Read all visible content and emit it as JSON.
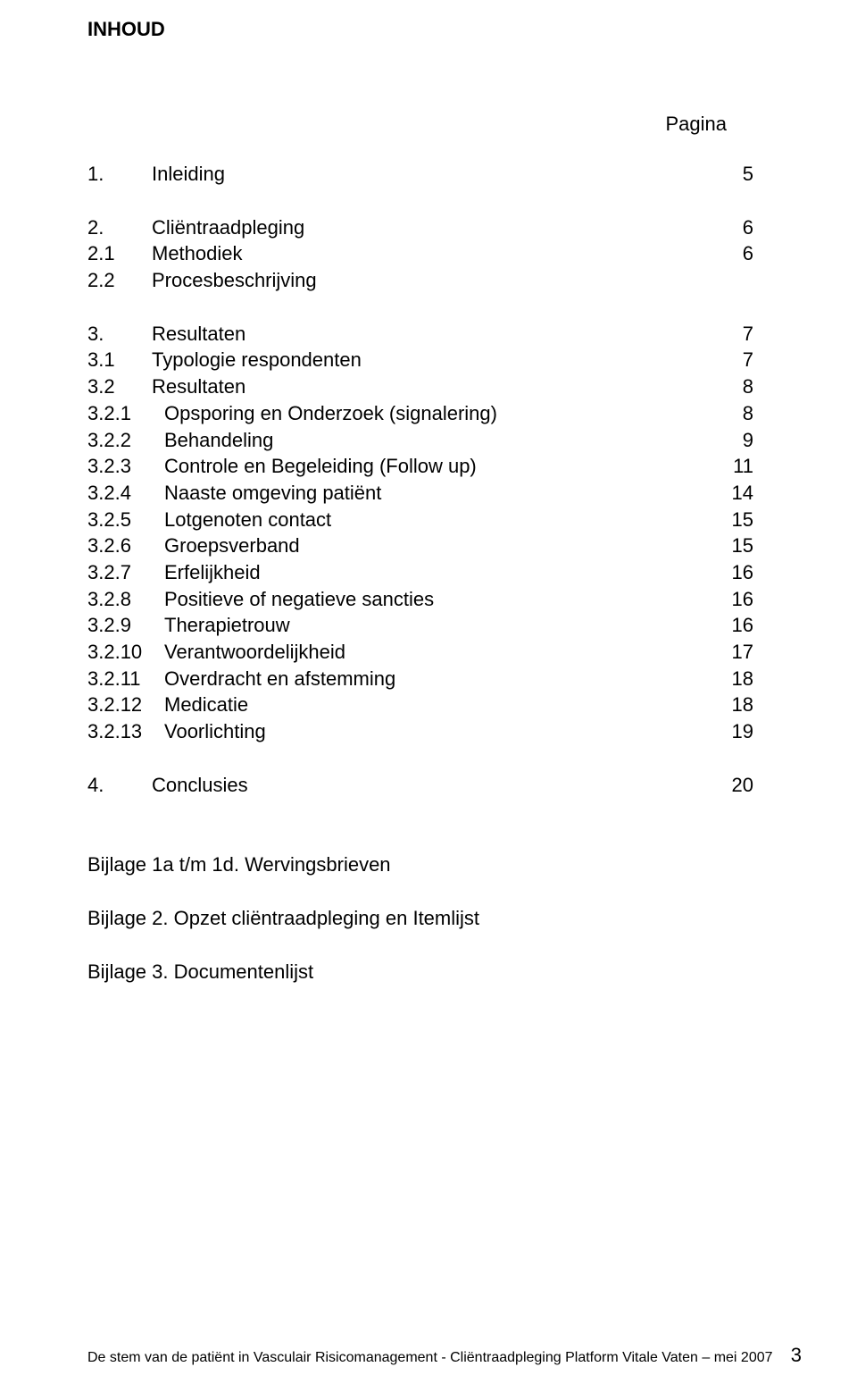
{
  "heading": "INHOUD",
  "pagina_label": "Pagina",
  "sections": [
    {
      "rows": [
        {
          "num": "1.",
          "title": "Inleiding",
          "page": "5"
        }
      ]
    },
    {
      "rows": [
        {
          "num": "2.",
          "title": "Cliëntraadpleging",
          "page": "6"
        },
        {
          "num": "2.1",
          "title": "Methodiek",
          "page": "6"
        },
        {
          "num": "2.2",
          "title": "Procesbeschrijving",
          "page": ""
        }
      ]
    },
    {
      "rows": [
        {
          "num": "3.",
          "title": "Resultaten",
          "page": "7"
        },
        {
          "num": "3.1",
          "title": "Typologie respondenten",
          "page": "7"
        },
        {
          "num": "3.2",
          "title": "Resultaten",
          "page": "8"
        },
        {
          "num": "3.2.1",
          "title": "Opsporing en Onderzoek (signalering)",
          "page": "8"
        },
        {
          "num": "3.2.2",
          "title": "Behandeling",
          "page": "9"
        },
        {
          "num": "3.2.3",
          "title": "Controle en Begeleiding (Follow up)",
          "page": "11"
        },
        {
          "num": "3.2.4",
          "title": "Naaste omgeving patiënt",
          "page": "14"
        },
        {
          "num": "3.2.5",
          "title": "Lotgenoten contact",
          "page": "15"
        },
        {
          "num": "3.2.6",
          "title": "Groepsverband",
          "page": "15"
        },
        {
          "num": "3.2.7",
          "title": "Erfelijkheid",
          "page": "16"
        },
        {
          "num": "3.2.8",
          "title": "Positieve of negatieve sancties",
          "page": "16"
        },
        {
          "num": "3.2.9",
          "title": "Therapietrouw",
          "page": "16"
        },
        {
          "num": "3.2.10",
          "title": "Verantwoordelijkheid",
          "page": "17"
        },
        {
          "num": "3.2.11",
          "title": "Overdracht en afstemming",
          "page": "18"
        },
        {
          "num": "3.2.12",
          "title": "Medicatie",
          "page": "18"
        },
        {
          "num": "3.2.13",
          "title": "Voorlichting",
          "page": "19"
        }
      ]
    },
    {
      "rows": [
        {
          "num": "4.",
          "title": "Conclusies",
          "page": "20"
        }
      ]
    }
  ],
  "bijlagen": [
    "Bijlage 1a t/m 1d. Wervingsbrieven",
    "Bijlage 2. Opzet cliëntraadpleging en Itemlijst",
    "Bijlage 3. Documentenlijst"
  ],
  "footer_text": "De stem van de patiënt in Vasculair Risicomanagement - Cliëntraadpleging Platform Vitale Vaten – mei 2007",
  "footer_page": "3"
}
